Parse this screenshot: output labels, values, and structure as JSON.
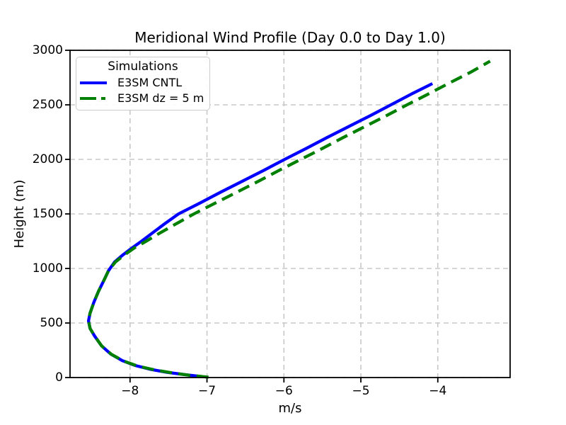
{
  "figure_title": "Meridional Wind Profile (Day 0.0 to Day 1.0)",
  "axes": {
    "xlabel": "m/s",
    "ylabel": "Height (m)",
    "xticks": [
      -8,
      -7,
      -6,
      -5,
      -4
    ],
    "yticks": [
      0,
      500,
      1000,
      1500,
      2000,
      2500,
      3000
    ]
  },
  "legend": {
    "title": "Simulations",
    "entries": [
      {
        "label": "E3SM CNTL",
        "color": "#0000ff",
        "linestyle": "solid"
      },
      {
        "label": "E3SM dz = 5 m",
        "color": "#008000",
        "linestyle": "dashed"
      }
    ]
  },
  "style": {
    "grid_color": "#c8c8c8",
    "spine_color": "#000000",
    "background": "#ffffff"
  },
  "chart_data": {
    "type": "line",
    "title": "Meridional Wind Profile (Day 0.0 to Day 1.0)",
    "xlabel": "m/s",
    "ylabel": "Height (m)",
    "xlim": [
      -8.78,
      -3.06
    ],
    "ylim": [
      0,
      3000
    ],
    "xticks": [
      -8,
      -7,
      -6,
      -5,
      -4
    ],
    "yticks": [
      0,
      500,
      1000,
      1500,
      2000,
      2500,
      3000
    ],
    "grid": true,
    "grid_style": "dashed",
    "legend_position": "upper left",
    "legend_title": "Simulations",
    "series": [
      {
        "name": "E3SM CNTL",
        "color": "#0000ff",
        "linestyle": "solid",
        "linewidth": 4.3,
        "points_vz": [
          [
            -7.08,
            10
          ],
          [
            -7.3,
            28
          ],
          [
            -7.52,
            48
          ],
          [
            -7.73,
            75
          ],
          [
            -7.93,
            110
          ],
          [
            -8.1,
            155
          ],
          [
            -8.25,
            215
          ],
          [
            -8.37,
            290
          ],
          [
            -8.46,
            380
          ],
          [
            -8.52,
            450
          ],
          [
            -8.54,
            520
          ],
          [
            -8.52,
            590
          ],
          [
            -8.47,
            690
          ],
          [
            -8.41,
            790
          ],
          [
            -8.34,
            890
          ],
          [
            -8.28,
            980
          ],
          [
            -8.2,
            1060
          ],
          [
            -8.1,
            1120
          ],
          [
            -7.97,
            1190
          ],
          [
            -7.85,
            1250
          ],
          [
            -7.7,
            1330
          ],
          [
            -7.55,
            1410
          ],
          [
            -7.37,
            1500
          ],
          [
            -7.09,
            1600
          ],
          [
            -6.82,
            1700
          ],
          [
            -6.54,
            1800
          ],
          [
            -6.26,
            1900
          ],
          [
            -5.99,
            2000
          ],
          [
            -5.71,
            2100
          ],
          [
            -5.44,
            2200
          ],
          [
            -5.16,
            2300
          ],
          [
            -4.88,
            2400
          ],
          [
            -4.61,
            2500
          ],
          [
            -4.34,
            2600
          ],
          [
            -4.07,
            2695
          ]
        ]
      },
      {
        "name": "E3SM dz = 5 m",
        "color": "#008000",
        "linestyle": "dashed",
        "linewidth": 4.3,
        "points_vz": [
          [
            -6.98,
            3
          ],
          [
            -7.22,
            20
          ],
          [
            -7.45,
            42
          ],
          [
            -7.68,
            70
          ],
          [
            -7.9,
            105
          ],
          [
            -8.08,
            150
          ],
          [
            -8.24,
            212
          ],
          [
            -8.37,
            290
          ],
          [
            -8.46,
            380
          ],
          [
            -8.52,
            450
          ],
          [
            -8.54,
            520
          ],
          [
            -8.52,
            590
          ],
          [
            -8.47,
            690
          ],
          [
            -8.41,
            790
          ],
          [
            -8.34,
            890
          ],
          [
            -8.28,
            980
          ],
          [
            -8.19,
            1060
          ],
          [
            -8.08,
            1120
          ],
          [
            -7.94,
            1190
          ],
          [
            -7.79,
            1250
          ],
          [
            -7.6,
            1330
          ],
          [
            -7.4,
            1410
          ],
          [
            -7.17,
            1500
          ],
          [
            -6.89,
            1600
          ],
          [
            -6.61,
            1700
          ],
          [
            -6.33,
            1800
          ],
          [
            -6.06,
            1900
          ],
          [
            -5.78,
            2000
          ],
          [
            -5.5,
            2100
          ],
          [
            -5.23,
            2200
          ],
          [
            -4.95,
            2300
          ],
          [
            -4.67,
            2400
          ],
          [
            -4.4,
            2500
          ],
          [
            -4.12,
            2600
          ],
          [
            -3.85,
            2700
          ],
          [
            -3.57,
            2800
          ],
          [
            -3.32,
            2900
          ]
        ]
      }
    ]
  }
}
